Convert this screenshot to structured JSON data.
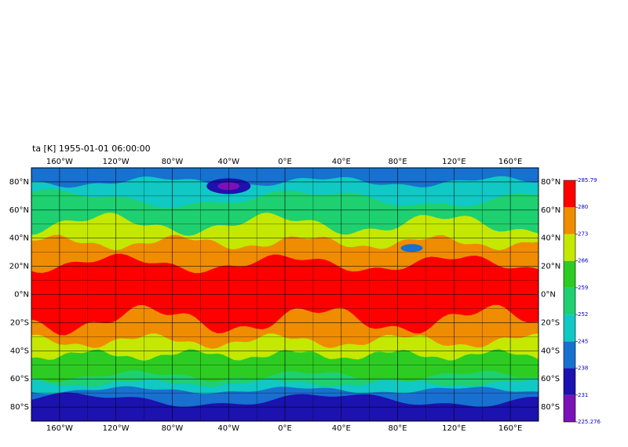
{
  "title": "ta [K]  1955-01-01 06:00:00",
  "map": {
    "xlim": [
      -180,
      180
    ],
    "ylim": [
      -90,
      90
    ],
    "xticks": [
      {
        "value": -160,
        "label": "160°W"
      },
      {
        "value": -120,
        "label": "120°W"
      },
      {
        "value": -80,
        "label": "80°W"
      },
      {
        "value": -40,
        "label": "40°W"
      },
      {
        "value": 0,
        "label": "0°E"
      },
      {
        "value": 40,
        "label": "40°E"
      },
      {
        "value": 80,
        "label": "80°E"
      },
      {
        "value": 120,
        "label": "120°E"
      },
      {
        "value": 160,
        "label": "160°E"
      }
    ],
    "yticks": [
      {
        "value": 80,
        "label": "80°N"
      },
      {
        "value": 60,
        "label": "60°N"
      },
      {
        "value": 40,
        "label": "40°N"
      },
      {
        "value": 20,
        "label": "20°N"
      },
      {
        "value": 0,
        "label": "0°N"
      },
      {
        "value": -20,
        "label": "20°S"
      },
      {
        "value": -40,
        "label": "40°S"
      },
      {
        "value": -60,
        "label": "60°S"
      },
      {
        "value": -80,
        "label": "80°S"
      }
    ]
  },
  "colorbar": {
    "levels": [
      225.276,
      231,
      238,
      245,
      252,
      259,
      266,
      273,
      280,
      285.79
    ],
    "colors": [
      "#7a12b8",
      "#1c12b0",
      "#1870d0",
      "#10c8c4",
      "#1ed070",
      "#2ccc22",
      "#c4e800",
      "#f08c00",
      "#ff0000"
    ]
  }
}
